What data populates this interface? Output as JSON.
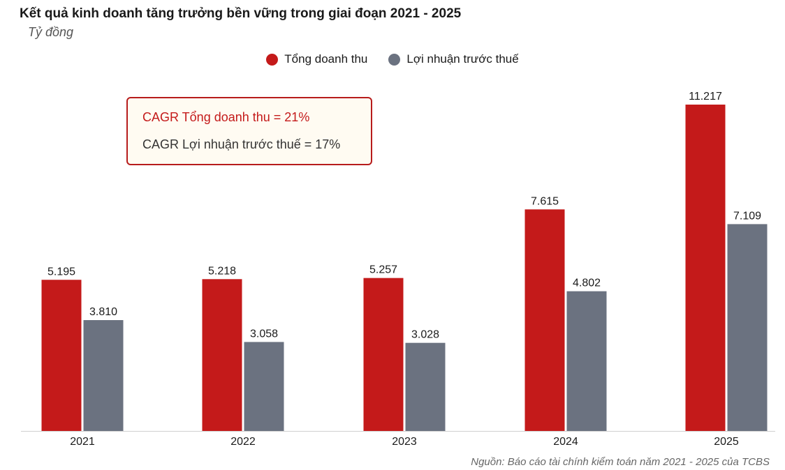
{
  "header": {
    "title": "Kết quả kinh doanh tăng trưởng bền vững trong giai đoạn 2021 - 2025",
    "subtitle": "Tỷ đồng"
  },
  "legend": {
    "items": [
      {
        "label": "Tổng doanh thu",
        "color": "#c41a1a"
      },
      {
        "label": "Lợi nhuận trước thuế",
        "color": "#6b7280"
      }
    ]
  },
  "cagr_box": {
    "revenue_text": "CAGR Tổng doanh thu = 21%",
    "profit_text": "CAGR Lợi nhuận trước thuế = 17%"
  },
  "footer": {
    "source": "Nguồn: Báo cáo tài chính kiểm toán năm 2021 - 2025 của TCBS"
  },
  "chart_data": {
    "type": "bar",
    "title": "Kết quả kinh doanh tăng trưởng bền vững trong giai đoạn 2021 - 2025",
    "ylabel": "Tỷ đồng",
    "xlabel": "",
    "categories": [
      "2021",
      "2022",
      "2023",
      "2024",
      "2025"
    ],
    "series": [
      {
        "name": "Tổng doanh thu",
        "color": "#c41a1a",
        "values": [
          5195,
          5218,
          5257,
          7615,
          11217
        ],
        "labels": [
          "5.195",
          "5.218",
          "5.257",
          "7.615",
          "11.217"
        ]
      },
      {
        "name": "Lợi nhuận trước thuế",
        "color": "#6b7280",
        "values": [
          3810,
          3058,
          3028,
          4802,
          7109
        ],
        "labels": [
          "3.810",
          "3.058",
          "3.028",
          "4.802",
          "7.109"
        ]
      }
    ],
    "ylim": [
      0,
      11217
    ],
    "grid": false,
    "legend_position": "top-center"
  }
}
